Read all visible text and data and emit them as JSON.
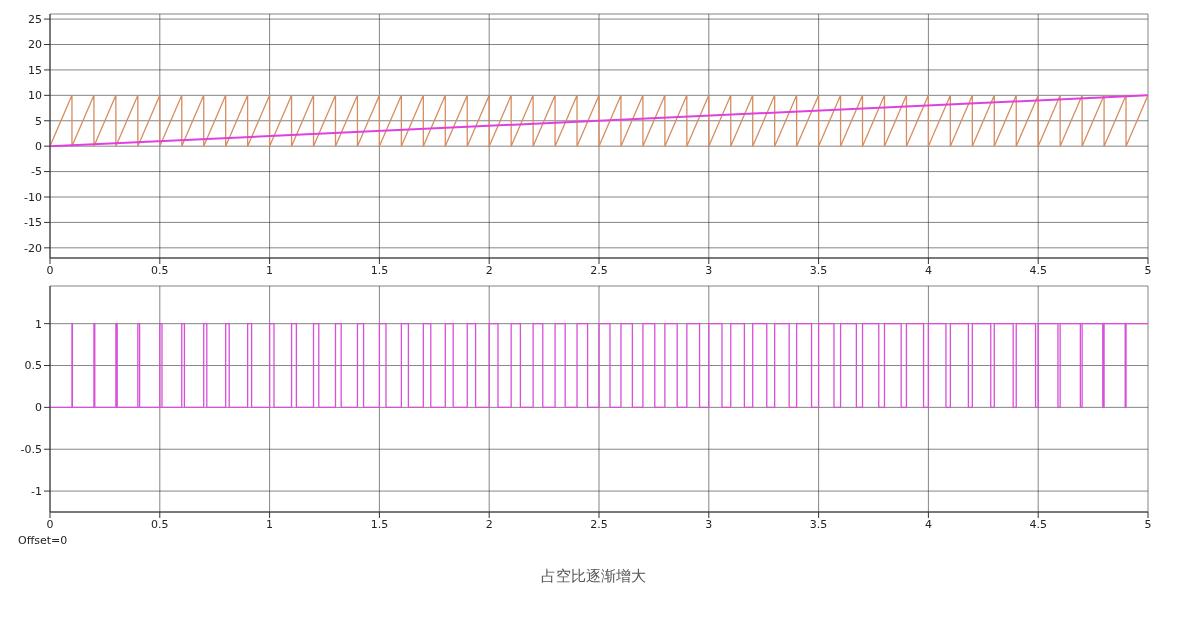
{
  "chart_data": [
    {
      "type": "line",
      "xlim": [
        0,
        5
      ],
      "xticks": [
        0,
        0.5,
        1,
        1.5,
        2,
        2.5,
        3,
        3.5,
        4,
        4.5,
        5
      ],
      "ylim": [
        -22,
        26
      ],
      "yticks": [
        -20,
        -15,
        -10,
        -5,
        0,
        5,
        10,
        15,
        20,
        25
      ],
      "grid": true,
      "marker": "none",
      "line_style": "solid",
      "series": [
        {
          "color": "#d98c5f",
          "x": [
            0,
            0.1,
            0.1,
            0.2,
            0.2,
            0.3,
            0.3,
            0.4,
            0.4,
            0.5,
            0.5,
            0.6,
            0.6,
            0.7,
            0.7,
            0.8,
            0.8,
            0.9,
            0.9,
            1,
            1,
            1.1,
            1.1,
            1.2,
            1.2,
            1.3,
            1.3,
            1.4,
            1.4,
            1.5,
            1.5,
            1.6,
            1.6,
            1.7,
            1.7,
            1.8,
            1.8,
            1.9,
            1.9,
            2,
            2,
            2.1,
            2.1,
            2.2,
            2.2,
            2.3,
            2.3,
            2.4,
            2.4,
            2.5,
            2.5,
            2.6,
            2.6,
            2.7,
            2.7,
            2.8,
            2.8,
            2.9,
            2.9,
            3,
            3,
            3.1,
            3.1,
            3.2,
            3.2,
            3.3,
            3.3,
            3.4,
            3.4,
            3.5,
            3.5,
            3.6,
            3.6,
            3.7,
            3.7,
            3.8,
            3.8,
            3.9,
            3.9,
            4,
            4,
            4.1,
            4.1,
            4.2,
            4.2,
            4.3,
            4.3,
            4.4,
            4.4,
            4.5,
            4.5,
            4.6,
            4.6,
            4.7,
            4.7,
            4.8,
            4.8,
            4.9,
            4.9,
            5
          ],
          "values": [
            0,
            10,
            0,
            10,
            0,
            10,
            0,
            10,
            0,
            10,
            0,
            10,
            0,
            10,
            0,
            10,
            0,
            10,
            0,
            10,
            0,
            10,
            0,
            10,
            0,
            10,
            0,
            10,
            0,
            10,
            0,
            10,
            0,
            10,
            0,
            10,
            0,
            10,
            0,
            10,
            0,
            10,
            0,
            10,
            0,
            10,
            0,
            10,
            0,
            10,
            0,
            10,
            0,
            10,
            0,
            10,
            0,
            10,
            0,
            10,
            0,
            10,
            0,
            10,
            0,
            10,
            0,
            10,
            0,
            10,
            0,
            10,
            0,
            10,
            0,
            10,
            0,
            10,
            0,
            10,
            0,
            10,
            0,
            10,
            0,
            10,
            0,
            10,
            0,
            10,
            0,
            10,
            0,
            10,
            0,
            10,
            0,
            10,
            0,
            10
          ]
        },
        {
          "color": "#e040e0",
          "x": [
            0,
            5
          ],
          "values": [
            0,
            10
          ]
        }
      ]
    },
    {
      "type": "line",
      "xlim": [
        0,
        5
      ],
      "xticks": [
        0,
        0.5,
        1,
        1.5,
        2,
        2.5,
        3,
        3.5,
        4,
        4.5,
        5
      ],
      "ylim": [
        -1.25,
        1.45
      ],
      "yticks": [
        -1,
        -0.5,
        0,
        0.5,
        1
      ],
      "grid": true,
      "marker": "none",
      "line_style": "solid",
      "annotations": [
        "Offset=0",
        "占空比逐渐增大"
      ],
      "series": [
        {
          "color": "#d94fd9",
          "x": [
            0,
            0.1,
            0.1,
            0.102,
            0.102,
            0.2,
            0.2,
            0.204,
            0.204,
            0.3,
            0.3,
            0.306,
            0.306,
            0.4,
            0.4,
            0.408,
            0.408,
            0.5,
            0.5,
            0.51,
            0.51,
            0.6,
            0.6,
            0.612,
            0.612,
            0.7,
            0.7,
            0.714,
            0.714,
            0.8,
            0.8,
            0.816,
            0.816,
            0.9,
            0.9,
            0.918,
            0.918,
            1,
            1,
            1.02,
            1.02,
            1.1,
            1.1,
            1.122,
            1.122,
            1.2,
            1.2,
            1.224,
            1.224,
            1.3,
            1.3,
            1.326,
            1.326,
            1.4,
            1.4,
            1.428,
            1.428,
            1.5,
            1.5,
            1.53,
            1.53,
            1.6,
            1.6,
            1.632,
            1.632,
            1.7,
            1.7,
            1.734,
            1.734,
            1.8,
            1.8,
            1.836,
            1.836,
            1.9,
            1.9,
            1.938,
            1.938,
            2,
            2,
            2.04,
            2.04,
            2.1,
            2.1,
            2.142,
            2.142,
            2.2,
            2.2,
            2.244,
            2.244,
            2.3,
            2.3,
            2.346,
            2.346,
            2.4,
            2.4,
            2.448,
            2.448,
            2.5,
            2.5,
            2.55,
            2.55,
            2.6,
            2.6,
            2.652,
            2.652,
            2.7,
            2.7,
            2.754,
            2.754,
            2.8,
            2.8,
            2.856,
            2.856,
            2.9,
            2.9,
            2.958,
            2.958,
            3,
            3,
            3.06,
            3.06,
            3.1,
            3.1,
            3.162,
            3.162,
            3.2,
            3.2,
            3.264,
            3.264,
            3.3,
            3.3,
            3.366,
            3.366,
            3.4,
            3.4,
            3.468,
            3.468,
            3.5,
            3.5,
            3.57,
            3.57,
            3.6,
            3.6,
            3.672,
            3.672,
            3.7,
            3.7,
            3.774,
            3.774,
            3.8,
            3.8,
            3.876,
            3.876,
            3.9,
            3.9,
            3.978,
            3.978,
            4,
            4,
            4.08,
            4.08,
            4.1,
            4.1,
            4.182,
            4.182,
            4.2,
            4.2,
            4.284,
            4.284,
            4.3,
            4.3,
            4.386,
            4.386,
            4.4,
            4.4,
            4.488,
            4.488,
            4.5,
            4.5,
            4.59,
            4.59,
            4.6,
            4.6,
            4.692,
            4.692,
            4.7,
            4.7,
            4.794,
            4.794,
            4.8,
            4.8,
            4.896,
            4.896,
            4.9,
            4.9,
            5
          ],
          "values": [
            0,
            0,
            1,
            1,
            0,
            0,
            1,
            1,
            0,
            0,
            1,
            1,
            0,
            0,
            1,
            1,
            0,
            0,
            1,
            1,
            0,
            0,
            1,
            1,
            0,
            0,
            1,
            1,
            0,
            0,
            1,
            1,
            0,
            0,
            1,
            1,
            0,
            0,
            1,
            1,
            0,
            0,
            1,
            1,
            0,
            0,
            1,
            1,
            0,
            0,
            1,
            1,
            0,
            0,
            1,
            1,
            0,
            0,
            1,
            1,
            0,
            0,
            1,
            1,
            0,
            0,
            1,
            1,
            0,
            0,
            1,
            1,
            0,
            0,
            1,
            1,
            0,
            0,
            1,
            1,
            0,
            0,
            1,
            1,
            0,
            0,
            1,
            1,
            0,
            0,
            1,
            1,
            0,
            0,
            1,
            1,
            0,
            0,
            1,
            1,
            0,
            0,
            1,
            1,
            0,
            0,
            1,
            1,
            0,
            0,
            1,
            1,
            0,
            0,
            1,
            1,
            0,
            0,
            1,
            1,
            0,
            0,
            1,
            1,
            0,
            0,
            1,
            1,
            0,
            0,
            1,
            1,
            0,
            0,
            1,
            1,
            0,
            0,
            1,
            1,
            0,
            0,
            1,
            1,
            0,
            0,
            1,
            1,
            0,
            0,
            1,
            1,
            0,
            0,
            1,
            1,
            0,
            0,
            1,
            1,
            0,
            0,
            1,
            1,
            0,
            0,
            1,
            1,
            0,
            0,
            1,
            1,
            0,
            0,
            1,
            1,
            0,
            0,
            1,
            1,
            0,
            0,
            1,
            1,
            0,
            0,
            1,
            1,
            0,
            0,
            1,
            1,
            0,
            0,
            1,
            1
          ]
        }
      ]
    }
  ]
}
